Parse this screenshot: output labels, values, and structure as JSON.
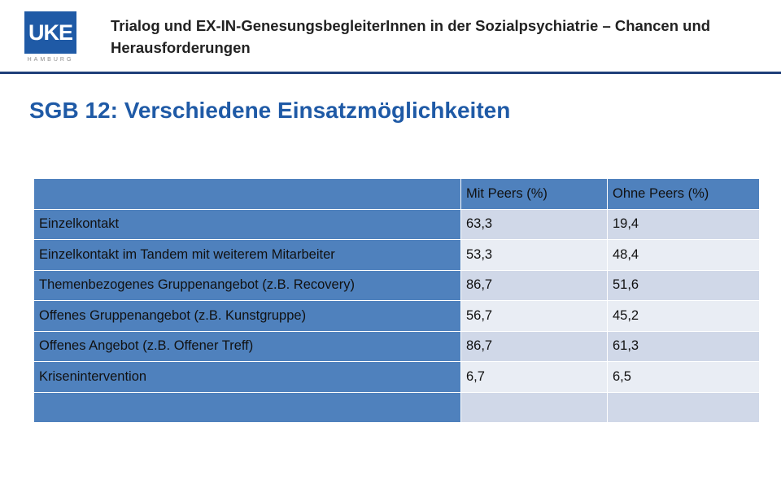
{
  "header": {
    "logo": {
      "brand_text": "UKE",
      "city_text": "HAMBURG",
      "brand_color": "#1f5aa6"
    },
    "title": "Trialog und EX-IN-GenesungsbegleiterInnen in der Sozialpsychiatrie – Chancen und Herausforderungen"
  },
  "slide": {
    "title": "SGB 12: Verschiedene Einsatzmöglichkeiten"
  },
  "table": {
    "columns": [
      "",
      "Mit Peers (%)",
      "Ohne Peers (%)"
    ],
    "rows": [
      [
        "Einzelkontakt",
        "63,3",
        "19,4"
      ],
      [
        "Einzelkontakt im Tandem mit weiterem Mitarbeiter",
        "53,3",
        "48,4"
      ],
      [
        "Themenbezogenes Gruppenangebot (z.B. Recovery)",
        "86,7",
        "51,6"
      ],
      [
        "Offenes Gruppenangebot (z.B. Kunstgruppe)",
        "56,7",
        "45,2"
      ],
      [
        "Offenes Angebot (z.B. Offener Treff)",
        "86,7",
        "61,3"
      ],
      [
        "Krisenintervention",
        "6,7",
        "6,5"
      ],
      [
        "",
        "",
        ""
      ]
    ],
    "colors": {
      "header": "#4f81bd",
      "band_dark": "#d0d8e8",
      "band_light": "#e9edf4"
    }
  }
}
